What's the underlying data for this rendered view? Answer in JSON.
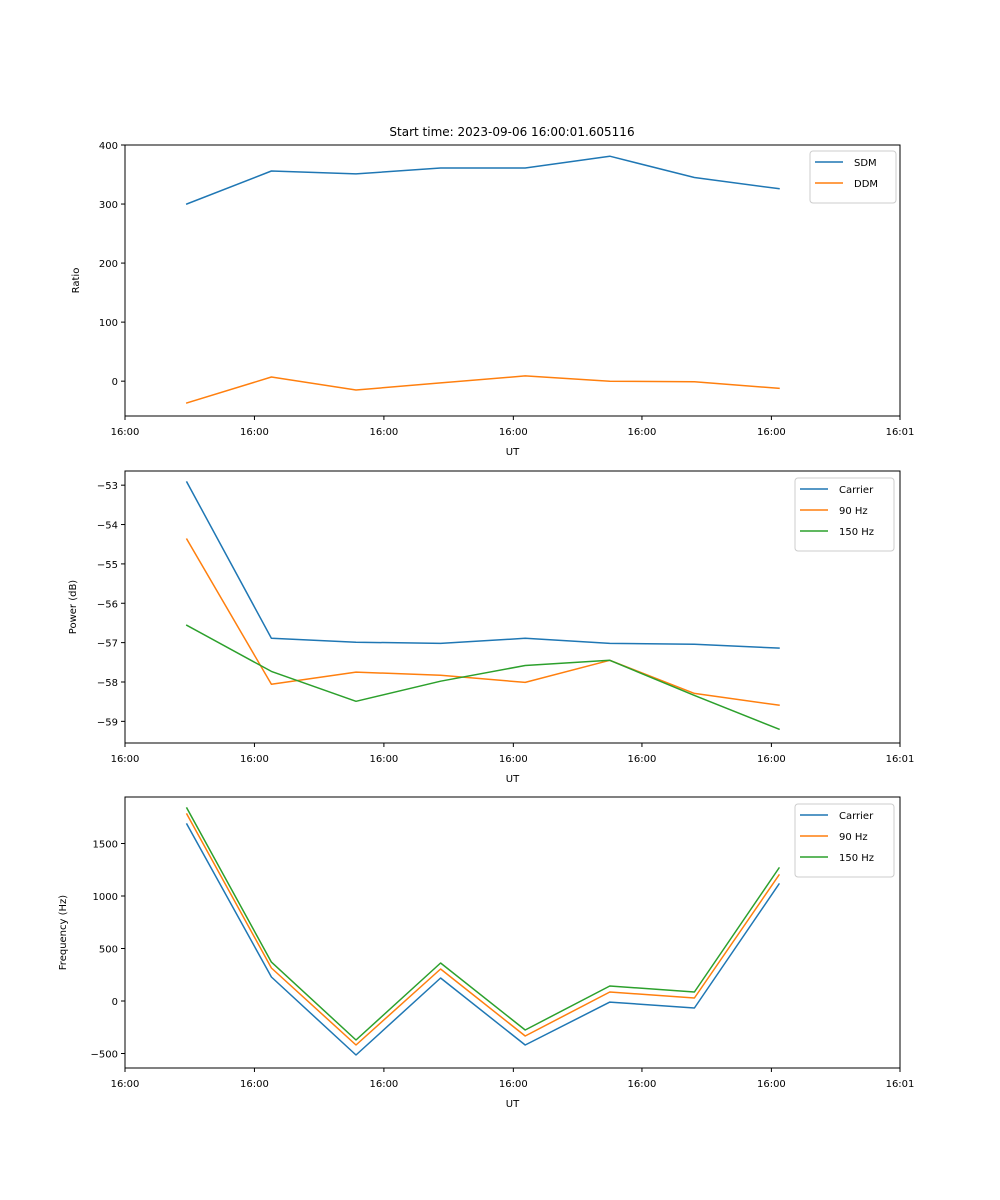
{
  "figure_title": "Start time: 2023-09-06 16:00:01.605116",
  "chart_data": [
    {
      "type": "line",
      "title": "Start time: 2023-09-06 16:00:01.605116",
      "xlabel": "UT",
      "ylabel": "Ratio",
      "x": [
        1,
        2,
        3,
        4,
        5,
        6,
        7,
        8
      ],
      "xlim": [
        0.27,
        9.43
      ],
      "xticks": [
        0.27,
        1.8,
        3.33,
        4.86,
        6.38,
        7.91,
        9.43
      ],
      "xtick_labels": [
        "16:00",
        "16:00",
        "16:00",
        "16:00",
        "16:00",
        "16:00",
        "16:01"
      ],
      "ylim": [
        -59,
        400
      ],
      "yticks": [
        0,
        100,
        200,
        300,
        400
      ],
      "ytick_labels": [
        "0",
        "100",
        "200",
        "300",
        "400"
      ],
      "grid": false,
      "legend": "top-right",
      "series": [
        {
          "name": "SDM",
          "color": "#1f77b4",
          "values": [
            300,
            356,
            351,
            361,
            361,
            381,
            345,
            326
          ]
        },
        {
          "name": "DDM",
          "color": "#ff7f0e",
          "values": [
            -37,
            7,
            -15,
            -3,
            9,
            0,
            -1,
            -12
          ]
        }
      ]
    },
    {
      "type": "line",
      "title": "",
      "xlabel": "UT",
      "ylabel": "Power (dB)",
      "x": [
        1,
        2,
        3,
        4,
        5,
        6,
        7,
        8
      ],
      "xlim": [
        0.27,
        9.43
      ],
      "xticks": [
        0.27,
        1.8,
        3.33,
        4.86,
        6.38,
        7.91,
        9.43
      ],
      "xtick_labels": [
        "16:00",
        "16:00",
        "16:00",
        "16:00",
        "16:00",
        "16:00",
        "16:01"
      ],
      "ylim": [
        -59.55,
        -52.64
      ],
      "yticks": [
        -59,
        -58,
        -57,
        -56,
        -55,
        -54,
        -53
      ],
      "ytick_labels": [
        "−59",
        "−58",
        "−57",
        "−56",
        "−55",
        "−54",
        "−53"
      ],
      "grid": false,
      "legend": "top-right",
      "series": [
        {
          "name": "Carrier",
          "color": "#1f77b4",
          "values": [
            -52.92,
            -56.89,
            -56.99,
            -57.02,
            -56.89,
            -57.02,
            -57.04,
            -57.14
          ]
        },
        {
          "name": "90 Hz",
          "color": "#ff7f0e",
          "values": [
            -54.37,
            -58.06,
            -57.75,
            -57.83,
            -58.01,
            -57.45,
            -58.29,
            -58.59
          ]
        },
        {
          "name": "150 Hz",
          "color": "#2ca02c",
          "values": [
            -56.56,
            -57.73,
            -58.49,
            -57.98,
            -57.58,
            -57.45,
            -58.34,
            -59.2
          ]
        }
      ]
    },
    {
      "type": "line",
      "title": "",
      "xlabel": "UT",
      "ylabel": "Frequency (Hz)",
      "x": [
        1,
        2,
        3,
        4,
        5,
        6,
        7,
        8
      ],
      "xlim": [
        0.27,
        9.43
      ],
      "xticks": [
        0.27,
        1.8,
        3.33,
        4.86,
        6.38,
        7.91,
        9.43
      ],
      "xtick_labels": [
        "16:00",
        "16:00",
        "16:00",
        "16:00",
        "16:00",
        "16:00",
        "16:01"
      ],
      "ylim": [
        -638,
        1943
      ],
      "yticks": [
        -500,
        0,
        500,
        1000,
        1500
      ],
      "ytick_labels": [
        "−500",
        "0",
        "500",
        "1000",
        "1500"
      ],
      "grid": false,
      "legend": "top-right",
      "series": [
        {
          "name": "Carrier",
          "color": "#1f77b4",
          "values": [
            1686,
            229,
            -514,
            219,
            -419,
            -10,
            -67,
            1114
          ]
        },
        {
          "name": "90 Hz",
          "color": "#ff7f0e",
          "values": [
            1781,
            314,
            -419,
            305,
            -333,
            86,
            29,
            1200
          ]
        },
        {
          "name": "150 Hz",
          "color": "#2ca02c",
          "values": [
            1838,
            371,
            -371,
            362,
            -276,
            143,
            86,
            1267
          ]
        }
      ]
    }
  ]
}
